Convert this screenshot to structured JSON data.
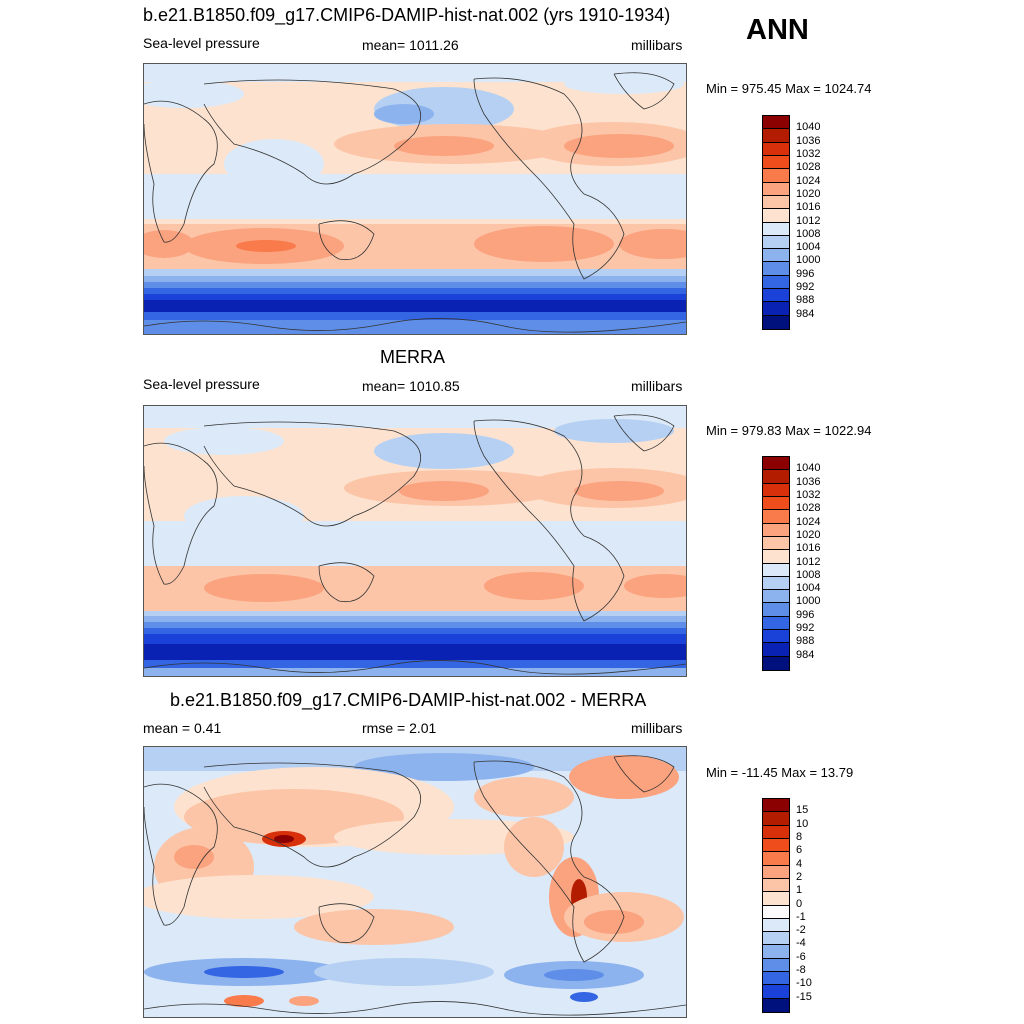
{
  "season": "ANN",
  "units": "millibars",
  "panels": [
    {
      "title": "b.e21.B1850.f09_g17.CMIP6-DAMIP-hist-nat.002 (yrs 1910-1934)",
      "variable": "Sea-level pressure",
      "stat_left": "mean= 1011.26",
      "stat_mid": "",
      "units": "millibars",
      "minmax": "Min = 975.45 Max = 1024.74",
      "colorbar_labels": [
        "1040",
        "1036",
        "1032",
        "1028",
        "1024",
        "1020",
        "1016",
        "1012",
        "1008",
        "1004",
        "1000",
        "996",
        "992",
        "988",
        "984"
      ],
      "colors": [
        "#8b0000",
        "#b41c00",
        "#d8300a",
        "#ef4d1c",
        "#f97a4a",
        "#fba27e",
        "#fcc5a8",
        "#fde3cf",
        "#dbe9f8",
        "#b5d0f3",
        "#8db3ee",
        "#5e8ee8",
        "#3465e3",
        "#1b42d8",
        "#0a22b3",
        "#00107d"
      ]
    },
    {
      "title": "MERRA",
      "variable": "Sea-level pressure",
      "stat_left": "mean= 1010.85",
      "stat_mid": "",
      "units": "millibars",
      "minmax": "Min = 979.83 Max = 1022.94",
      "colorbar_labels": [
        "1040",
        "1036",
        "1032",
        "1028",
        "1024",
        "1020",
        "1016",
        "1012",
        "1008",
        "1004",
        "1000",
        "996",
        "992",
        "988",
        "984"
      ],
      "colors": [
        "#8b0000",
        "#b41c00",
        "#d8300a",
        "#ef4d1c",
        "#f97a4a",
        "#fba27e",
        "#fcc5a8",
        "#fde3cf",
        "#dbe9f8",
        "#b5d0f3",
        "#8db3ee",
        "#5e8ee8",
        "#3465e3",
        "#1b42d8",
        "#0a22b3",
        "#00107d"
      ]
    },
    {
      "title": "b.e21.B1850.f09_g17.CMIP6-DAMIP-hist-nat.002 - MERRA",
      "variable": "",
      "stat_left": "mean =   0.41",
      "stat_mid": "rmse =   2.01",
      "units": "millibars",
      "minmax": "Min = -11.45 Max =  13.79",
      "colorbar_labels": [
        "15",
        "10",
        "8",
        "6",
        "4",
        "2",
        "1",
        "0",
        "-1",
        "-2",
        "-4",
        "-6",
        "-8",
        "-10",
        "-15"
      ],
      "colors": [
        "#8b0000",
        "#b41c00",
        "#d8300a",
        "#ef4d1c",
        "#f97a4a",
        "#fba27e",
        "#fcc5a8",
        "#fde3cf",
        "#fbfbfb",
        "#dbe9f8",
        "#b5d0f3",
        "#8db3ee",
        "#5e8ee8",
        "#3465e3",
        "#1b42d8",
        "#00107d"
      ]
    }
  ]
}
